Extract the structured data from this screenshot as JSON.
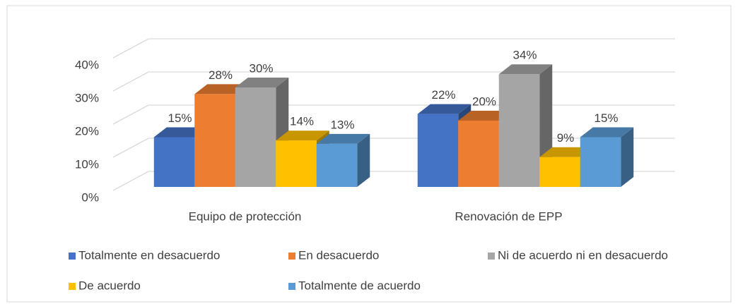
{
  "chart_data": {
    "type": "bar3d",
    "categories": [
      "Equipo de protección",
      "Renovación de EPP"
    ],
    "series": [
      {
        "name": "Totalmente en desacuerdo",
        "color": "#4472c4",
        "values": [
          15,
          22
        ],
        "value_labels": [
          "15%",
          "22%"
        ]
      },
      {
        "name": "En desacuerdo",
        "color": "#ed7d31",
        "values": [
          28,
          20
        ],
        "value_labels": [
          "28%",
          "20%"
        ]
      },
      {
        "name": "Ni de acuerdo ni en desacuerdo",
        "color": "#a5a5a5",
        "values": [
          30,
          34
        ],
        "value_labels": [
          "30%",
          "34%"
        ]
      },
      {
        "name": "De acuerdo",
        "color": "#ffc000",
        "values": [
          14,
          9
        ],
        "value_labels": [
          "14%",
          "9%"
        ]
      },
      {
        "name": "Totalmente de acuerdo",
        "color": "#5b9bd5",
        "values": [
          13,
          15
        ],
        "value_labels": [
          "13%",
          "15%"
        ]
      }
    ],
    "ylim": [
      0,
      40
    ],
    "yticks": [
      {
        "value": 0,
        "label": "0%"
      },
      {
        "value": 10,
        "label": "10%"
      },
      {
        "value": 20,
        "label": "20%"
      },
      {
        "value": 30,
        "label": "30%"
      },
      {
        "value": 40,
        "label": "40%"
      }
    ],
    "grid": true,
    "legend": "bottom"
  }
}
